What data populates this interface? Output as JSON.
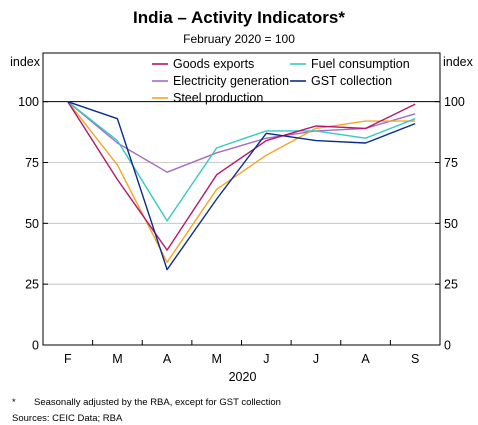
{
  "header": {
    "title": "India – Activity Indicators*",
    "subtitle": "February 2020 = 100"
  },
  "chart_data": {
    "type": "line",
    "title": "India – Activity Indicators*",
    "subtitle": "February 2020 = 100",
    "ylabel_left": "index",
    "ylabel_right": "index",
    "xlabel": "2020",
    "ylim": [
      0,
      120
    ],
    "yticks": [
      0,
      25,
      50,
      75,
      100
    ],
    "categories": [
      "F",
      "M",
      "A",
      "M",
      "J",
      "J",
      "A",
      "S"
    ],
    "grid": true,
    "legend_position": "top",
    "series": [
      {
        "name": "Goods exports",
        "color": "#b5176b",
        "values": [
          100,
          68,
          39,
          70,
          84,
          90,
          89,
          99
        ]
      },
      {
        "name": "Fuel consumption",
        "color": "#36c9c3",
        "values": [
          100,
          84,
          51,
          81,
          88,
          88,
          85,
          93
        ]
      },
      {
        "name": "Electricity generation",
        "color": "#a66cc0",
        "values": [
          100,
          83,
          71,
          79,
          85,
          88,
          89,
          95
        ]
      },
      {
        "name": "GST collection",
        "color": "#0b2c8c",
        "values": [
          100,
          93,
          31,
          60,
          87,
          84,
          83,
          91
        ]
      },
      {
        "name": "Steel production",
        "color": "#f5a623",
        "values": [
          100,
          74,
          34,
          64,
          78,
          89,
          92,
          92
        ]
      }
    ]
  },
  "footnote": {
    "marker": "*",
    "text": "Seasonally adjusted by the RBA, except for GST collection"
  },
  "sources": "Sources: CEIC Data; RBA"
}
